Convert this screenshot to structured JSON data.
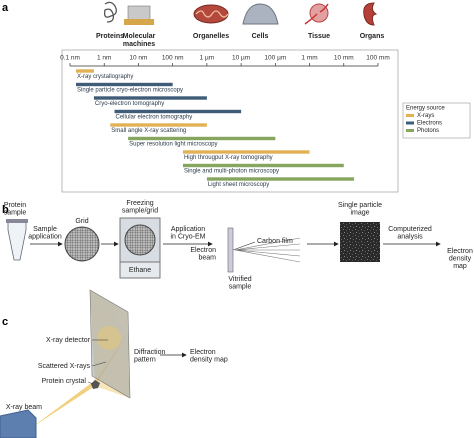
{
  "panel_labels": [
    "a",
    "b",
    "c"
  ],
  "panel_a": {
    "scales": [
      [
        "Proteins"
      ],
      [
        "Molecular",
        "machines"
      ],
      [
        "Organelles"
      ],
      [
        "Cells"
      ],
      [
        "Tissue"
      ],
      [
        "Organs"
      ]
    ]
  },
  "chart_data": {
    "type": "range-bar",
    "log_x": true,
    "xlim": [
      0.1,
      100000000
    ],
    "xticks": [
      {
        "value": 0.1,
        "label": "0.1 nm"
      },
      {
        "value": 1,
        "label": "1 nm"
      },
      {
        "value": 10,
        "label": "10 nm"
      },
      {
        "value": 100,
        "label": "100 nm"
      },
      {
        "value": 1000,
        "label": "1 µm"
      },
      {
        "value": 10000,
        "label": "10 µm"
      },
      {
        "value": 100000,
        "label": "100 µm"
      },
      {
        "value": 1000000,
        "label": "1 mm"
      },
      {
        "value": 10000000,
        "label": "10 mm"
      },
      {
        "value": 100000000,
        "label": "100 mm"
      }
    ],
    "categories": [
      "X-ray crystallography",
      "Single particle cryo-electron microscopy",
      "Cryo-electron tomography",
      "Cellular electron tomography",
      "Small angle X-ray scattering",
      "Super resolution light microscopy",
      "High througput X-ray tomography",
      "Single and multi-photon microscopy",
      "Light sheet microscopy"
    ],
    "legend_title": "Energy source",
    "series": [
      {
        "name": "X-rays",
        "color": "#e2b155",
        "values": [
          [
            0.15,
            0.5
          ],
          null,
          null,
          null,
          [
            1.5,
            1000
          ],
          null,
          [
            200,
            1000000
          ],
          null,
          null
        ]
      },
      {
        "name": "Electrons",
        "color": "#3f5d78",
        "values": [
          null,
          [
            0.15,
            100
          ],
          [
            0.5,
            1000
          ],
          [
            2,
            10000
          ],
          null,
          null,
          null,
          null,
          null
        ]
      },
      {
        "name": "Photons",
        "color": "#86a65f",
        "values": [
          null,
          null,
          null,
          null,
          null,
          [
            5,
            100000
          ],
          null,
          [
            200,
            10000000
          ],
          [
            1000,
            20000000
          ]
        ]
      }
    ]
  },
  "diagram_b": {
    "protein_sample": [
      "Protein",
      "sample"
    ],
    "sample_application": [
      "Sample",
      "application"
    ],
    "grid": [
      "Grid"
    ],
    "freezing": [
      "Freezing",
      "sample/grid"
    ],
    "ethane": [
      "Ethane"
    ],
    "application": [
      "Application",
      "in Cryo-EM"
    ],
    "electron_beam": [
      "Electron",
      "beam"
    ],
    "carbon_film": [
      "Carbon film"
    ],
    "vitrified_sample": [
      "Vitrified",
      "sample"
    ],
    "single_particle_image": [
      "Single particle",
      "image"
    ],
    "computerized_analysis": [
      "Computerized",
      "analysis"
    ],
    "electron_density_map": [
      "Electron",
      "density",
      "map"
    ]
  },
  "diagram_c": {
    "xray_detector": [
      "X-ray detector"
    ],
    "diffraction_pattern": [
      "Diffraction",
      "pattern"
    ],
    "electron_density_map": [
      "Electron",
      "density map"
    ],
    "scattered_xrays": [
      "Scattered X-rays"
    ],
    "protein_crystal": [
      "Protein crystal"
    ],
    "xray_beam": [
      "X-ray beam"
    ]
  }
}
